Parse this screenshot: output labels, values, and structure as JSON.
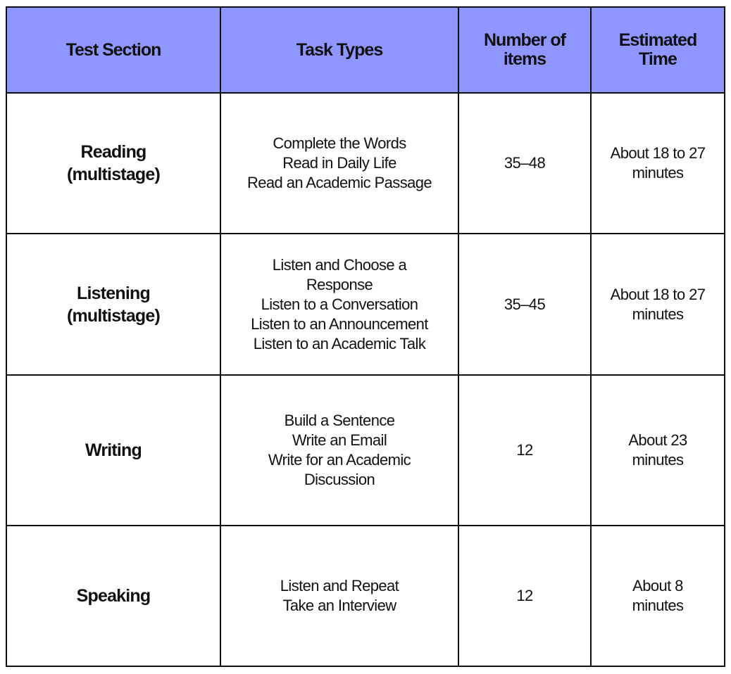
{
  "header_color": "#9096ff",
  "headers": [
    "Test Section",
    "Task Types",
    "Number of items",
    "Estimated Time"
  ],
  "rows": [
    {
      "section": [
        "Reading",
        "(multistage)"
      ],
      "tasks": [
        "Complete the Words",
        "Read in Daily Life",
        "Read an Academic Passage"
      ],
      "items": "35–48",
      "time": [
        "About 18 to 27",
        "minutes"
      ]
    },
    {
      "section": [
        "Listening",
        "(multistage)"
      ],
      "tasks": [
        "Listen and Choose a",
        "Response",
        "Listen to a Conversation",
        "Listen to an Announcement",
        "Listen to an Academic Talk"
      ],
      "items": "35–45",
      "time": [
        "About 18 to 27",
        "minutes"
      ]
    },
    {
      "section": [
        "Writing"
      ],
      "tasks": [
        "Build a Sentence",
        "Write an Email",
        "Write for an Academic",
        "Discussion"
      ],
      "items": "12",
      "time": [
        "About 23",
        "minutes"
      ]
    },
    {
      "section": [
        "Speaking"
      ],
      "tasks": [
        "Listen and Repeat",
        "Take an Interview"
      ],
      "items": "12",
      "time": [
        "About 8",
        "minutes"
      ]
    }
  ]
}
